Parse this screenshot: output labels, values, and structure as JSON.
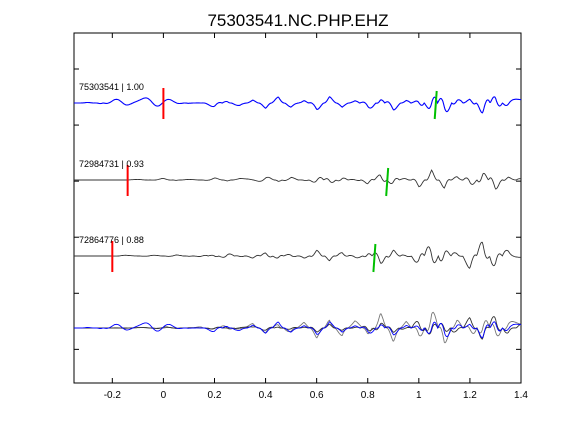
{
  "chart_data": {
    "type": "line",
    "title": "75303541.NC.PHP.EHZ",
    "xlabel": "",
    "ylabel": "",
    "xlim": [
      -0.35,
      1.4
    ],
    "xticks": [
      -0.2,
      0,
      0.2,
      0.4,
      0.6,
      0.8,
      1,
      1.2,
      1.4
    ],
    "xtick_labels": [
      "-0.2",
      "0",
      "0.2",
      "0.4",
      "0.6",
      "0.8",
      "1",
      "1.2",
      "1.4"
    ],
    "yticks_count": 6,
    "grid": false,
    "traces": [
      {
        "label": "75303541 | 1.00",
        "color": "#0000ff",
        "p_pick": 0.0,
        "s_pick": 1.07,
        "p_color": "#ff0000",
        "s_color": "#00c000",
        "waveform": {
          "times": [
            -0.35,
            -0.3,
            -0.25,
            -0.2,
            -0.15,
            -0.1,
            -0.05,
            0.0,
            0.05,
            0.1,
            0.15,
            0.2,
            0.25,
            0.3,
            0.35,
            0.4,
            0.45,
            0.5,
            0.55,
            0.6,
            0.65,
            0.7,
            0.75,
            0.8,
            0.85,
            0.9,
            0.95,
            1.0,
            1.05,
            1.1,
            1.15,
            1.2,
            1.25,
            1.3,
            1.35,
            1.4
          ],
          "amplitudes": [
            0.0,
            0.02,
            -0.02,
            0.05,
            0.12,
            0.15,
            0.12,
            0.08,
            0.05,
            -0.02,
            0.0,
            -0.08,
            0.05,
            -0.1,
            0.08,
            -0.1,
            0.12,
            -0.12,
            0.08,
            -0.15,
            0.12,
            -0.1,
            0.1,
            -0.18,
            0.1,
            -0.2,
            0.15,
            -0.25,
            0.35,
            -0.4,
            0.3,
            -0.35,
            0.4,
            -0.3,
            0.25,
            0.1
          ]
        }
      },
      {
        "label": "72984731 | 0.93",
        "color": "#333333",
        "p_pick": -0.14,
        "s_pick": 0.88,
        "p_color": "#ff0000",
        "s_color": "#00c000",
        "waveform": {
          "times": [
            -0.35,
            -0.3,
            -0.25,
            -0.2,
            -0.15,
            -0.1,
            -0.05,
            0.0,
            0.05,
            0.1,
            0.15,
            0.2,
            0.25,
            0.3,
            0.35,
            0.4,
            0.45,
            0.5,
            0.55,
            0.6,
            0.65,
            0.7,
            0.75,
            0.8,
            0.85,
            0.9,
            0.95,
            1.0,
            1.05,
            1.1,
            1.15,
            1.2,
            1.25,
            1.3,
            1.35,
            1.4
          ],
          "amplitudes": [
            0.0,
            0.0,
            0.0,
            0.0,
            0.0,
            0.02,
            0.0,
            0.03,
            -0.01,
            0.02,
            0.0,
            0.04,
            -0.02,
            0.05,
            0.03,
            0.08,
            -0.04,
            0.1,
            -0.08,
            0.15,
            -0.12,
            0.12,
            -0.15,
            0.18,
            -0.2,
            0.22,
            -0.25,
            0.35,
            -0.3,
            0.3,
            -0.35,
            0.38,
            -0.3,
            0.35,
            -0.25,
            0.15
          ]
        }
      },
      {
        "label": "72864776 | 0.88",
        "color": "#333333",
        "p_pick": -0.2,
        "s_pick": 0.83,
        "p_color": "#ff0000",
        "s_color": "#00c000",
        "waveform": {
          "times": [
            -0.35,
            -0.3,
            -0.25,
            -0.2,
            -0.15,
            -0.1,
            -0.05,
            0.0,
            0.05,
            0.1,
            0.15,
            0.2,
            0.25,
            0.3,
            0.35,
            0.4,
            0.45,
            0.5,
            0.55,
            0.6,
            0.65,
            0.7,
            0.75,
            0.8,
            0.85,
            0.9,
            0.95,
            1.0,
            1.05,
            1.1,
            1.15,
            1.2,
            1.25,
            1.3,
            1.35,
            1.4
          ],
          "amplitudes": [
            0.0,
            0.0,
            0.0,
            0.0,
            0.02,
            0.01,
            0.02,
            0.0,
            0.03,
            -0.02,
            0.05,
            -0.05,
            0.1,
            -0.08,
            0.15,
            -0.12,
            0.1,
            -0.15,
            0.18,
            -0.2,
            0.15,
            -0.2,
            0.25,
            -0.15,
            0.28,
            -0.3,
            0.25,
            -0.35,
            0.45,
            -0.4,
            0.35,
            -0.45,
            0.4,
            -0.35,
            0.3,
            0.12
          ]
        }
      }
    ],
    "overlay": {
      "description_colors": [
        "#0000ff",
        "#333333",
        "#777777"
      ]
    }
  }
}
